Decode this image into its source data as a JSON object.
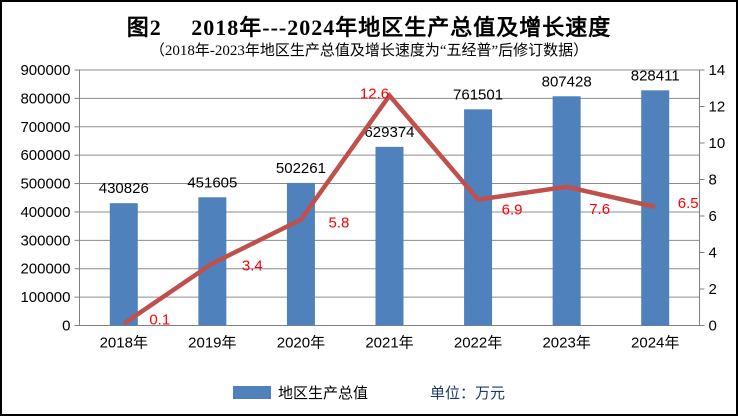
{
  "title": "图2　 2018年---2024年地区生产总值及增长速度",
  "subtitle": "（2018年-2023年地区生产总值及增长速度为“五经普”后修订数据）",
  "legend": {
    "bar_label": "地区生产总值",
    "unit_label": "单位：万元"
  },
  "colors": {
    "bar": "#4F81BD",
    "line": "#C0504D",
    "line_value_label": "#FF0000",
    "bar_value_label": "#000000",
    "grid": "#8C8C8C",
    "axis_frame": "#808080",
    "axis_text": "#000000",
    "unit_text": "#1F3864"
  },
  "chart_data": {
    "type": "combo",
    "categories": [
      "2018年",
      "2019年",
      "2020年",
      "2021年",
      "2022年",
      "2023年",
      "2024年"
    ],
    "series": [
      {
        "name": "地区生产总值",
        "type": "bar",
        "axis": "left",
        "values": [
          430826,
          451605,
          502261,
          629374,
          761501,
          807428,
          828411
        ],
        "value_labels": [
          "430826",
          "451605",
          "502261",
          "629374",
          "761501",
          "807428",
          "828411"
        ]
      },
      {
        "name": "增长速度",
        "type": "line",
        "axis": "right",
        "values": [
          0.1,
          3.4,
          5.8,
          12.6,
          6.9,
          7.6,
          6.5
        ],
        "value_labels": [
          "0.1",
          "3.4",
          "5.8",
          "12.6",
          "6.9",
          "7.6",
          "6.5"
        ]
      }
    ],
    "left_axis": {
      "min": 0,
      "max": 900000,
      "step": 100000,
      "ticks": [
        "0",
        "100000",
        "200000",
        "300000",
        "400000",
        "500000",
        "600000",
        "700000",
        "800000",
        "900000"
      ]
    },
    "right_axis": {
      "min": 0,
      "max": 14,
      "step": 2,
      "ticks": [
        "0",
        "2",
        "4",
        "6",
        "8",
        "10",
        "12",
        "14"
      ]
    },
    "grid": true,
    "legend_position": "bottom"
  }
}
